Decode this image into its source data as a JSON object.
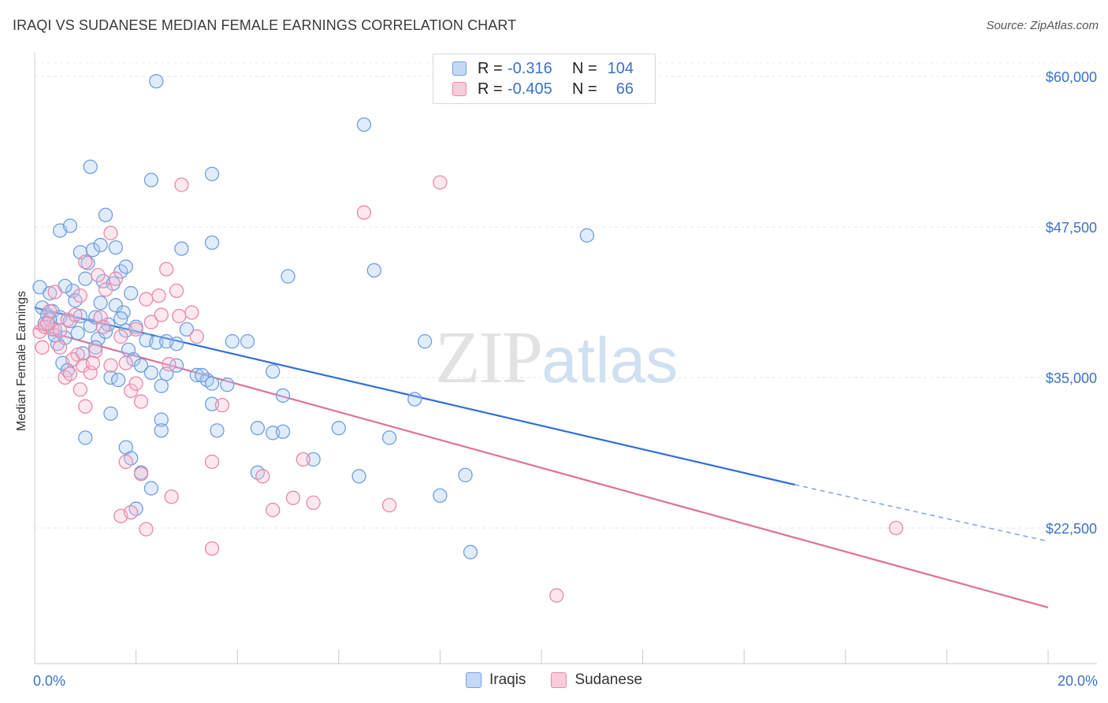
{
  "title": "IRAQI VS SUDANESE MEDIAN FEMALE EARNINGS CORRELATION CHART",
  "source": "Source: ZipAtlas.com",
  "watermark": {
    "zip": "ZIP",
    "atlas": "atlas"
  },
  "legend": {
    "rows": [
      {
        "r_label": "R =",
        "r_value": "-0.316",
        "n_label": "N =",
        "n_value": "104",
        "color": "#6f9fe0",
        "fill": "#c5d9f5"
      },
      {
        "r_label": "R =",
        "r_value": "-0.405",
        "n_label": "N =",
        "n_value": "66",
        "color": "#e888a8",
        "fill": "#f8cddb"
      }
    ]
  },
  "bottom_legend": [
    {
      "label": "Iraqis",
      "color": "#6f9fe0",
      "fill": "#c5d9f5"
    },
    {
      "label": "Sudanese",
      "color": "#e888a8",
      "fill": "#f8cddb"
    }
  ],
  "chart_data": {
    "type": "scatter",
    "xlabel": "",
    "ylabel": "Median Female Earnings",
    "x_tick_labels": [
      "0.0%",
      "20.0%"
    ],
    "y_tick_labels": [
      "$22,500",
      "$35,000",
      "$47,500",
      "$60,000"
    ],
    "y_ticks": [
      22500,
      35000,
      47500,
      60000
    ],
    "xlim": [
      0,
      20
    ],
    "ylim": [
      11000,
      61000
    ],
    "grid": true,
    "series": [
      {
        "name": "Iraqis",
        "color": "#3a72d4",
        "points": [
          [
            0.1,
            42.5
          ],
          [
            0.15,
            40.8
          ],
          [
            0.2,
            39.5
          ],
          [
            0.25,
            40.2
          ],
          [
            0.3,
            42.0
          ],
          [
            0.35,
            40.5
          ],
          [
            0.4,
            39.0
          ],
          [
            0.45,
            37.8
          ],
          [
            0.5,
            40.0
          ],
          [
            0.55,
            36.2
          ],
          [
            0.6,
            38.3
          ],
          [
            0.65,
            35.6
          ],
          [
            0.7,
            39.7
          ],
          [
            0.75,
            42.2
          ],
          [
            0.8,
            41.4
          ],
          [
            0.85,
            38.7
          ],
          [
            0.9,
            40.1
          ],
          [
            0.95,
            37.0
          ],
          [
            1.0,
            43.2
          ],
          [
            1.05,
            44.5
          ],
          [
            1.1,
            39.3
          ],
          [
            1.15,
            45.6
          ],
          [
            1.2,
            40.0
          ],
          [
            1.25,
            38.2
          ],
          [
            1.3,
            41.2
          ],
          [
            1.35,
            43.0
          ],
          [
            1.4,
            38.8
          ],
          [
            1.45,
            39.4
          ],
          [
            1.5,
            35.0
          ],
          [
            1.55,
            42.8
          ],
          [
            1.6,
            41.0
          ],
          [
            1.65,
            34.8
          ],
          [
            1.7,
            43.8
          ],
          [
            1.75,
            40.4
          ],
          [
            1.8,
            38.9
          ],
          [
            1.85,
            37.3
          ],
          [
            1.9,
            42.0
          ],
          [
            1.95,
            36.5
          ],
          [
            2.0,
            39.2
          ],
          [
            2.1,
            36.0
          ],
          [
            2.2,
            38.1
          ],
          [
            2.3,
            35.4
          ],
          [
            2.4,
            37.9
          ],
          [
            2.5,
            34.3
          ],
          [
            2.6,
            35.3
          ],
          [
            2.8,
            37.8
          ],
          [
            3.0,
            39.0
          ],
          [
            3.2,
            35.2
          ],
          [
            3.4,
            34.8
          ],
          [
            3.5,
            34.5
          ],
          [
            0.5,
            47.2
          ],
          [
            0.7,
            47.6
          ],
          [
            0.9,
            45.4
          ],
          [
            1.1,
            52.5
          ],
          [
            1.3,
            46.0
          ],
          [
            1.4,
            48.5
          ],
          [
            1.6,
            45.8
          ],
          [
            1.8,
            44.2
          ],
          [
            2.3,
            51.4
          ],
          [
            2.9,
            45.7
          ],
          [
            3.5,
            51.9
          ],
          [
            3.5,
            46.2
          ],
          [
            5.0,
            43.4
          ],
          [
            6.5,
            56.0
          ],
          [
            6.7,
            43.9
          ],
          [
            10.9,
            46.8
          ],
          [
            2.4,
            59.6
          ],
          [
            3.9,
            38.0
          ],
          [
            4.2,
            38.0
          ],
          [
            4.7,
            35.5
          ],
          [
            1.0,
            30.0
          ],
          [
            1.5,
            32.0
          ],
          [
            1.8,
            29.2
          ],
          [
            1.9,
            28.3
          ],
          [
            2.1,
            27.1
          ],
          [
            2.3,
            25.8
          ],
          [
            2.0,
            24.1
          ],
          [
            2.5,
            31.5
          ],
          [
            2.5,
            30.6
          ],
          [
            3.5,
            32.8
          ],
          [
            3.6,
            30.6
          ],
          [
            4.4,
            27.1
          ],
          [
            4.4,
            30.8
          ],
          [
            4.7,
            30.4
          ],
          [
            4.9,
            30.5
          ],
          [
            5.5,
            28.2
          ],
          [
            6.0,
            30.8
          ],
          [
            6.4,
            26.8
          ],
          [
            7.0,
            30.0
          ],
          [
            7.5,
            33.2
          ],
          [
            7.7,
            38.0
          ],
          [
            8.0,
            25.2
          ],
          [
            8.5,
            26.9
          ],
          [
            8.6,
            20.5
          ],
          [
            3.3,
            35.2
          ],
          [
            3.8,
            34.4
          ],
          [
            4.9,
            33.5
          ],
          [
            2.8,
            36.0
          ],
          [
            2.6,
            38.0
          ],
          [
            1.2,
            37.5
          ],
          [
            0.3,
            39.8
          ],
          [
            0.4,
            38.5
          ],
          [
            0.6,
            42.6
          ],
          [
            1.7,
            39.9
          ]
        ]
      },
      {
        "name": "Sudanese",
        "color": "#e0709a",
        "points": [
          [
            0.1,
            38.8
          ],
          [
            0.15,
            37.5
          ],
          [
            0.2,
            39.2
          ],
          [
            0.3,
            40.5
          ],
          [
            0.35,
            39.0
          ],
          [
            0.4,
            42.1
          ],
          [
            0.5,
            38.9
          ],
          [
            0.6,
            35.0
          ],
          [
            0.65,
            39.8
          ],
          [
            0.7,
            35.3
          ],
          [
            0.8,
            40.2
          ],
          [
            0.85,
            36.9
          ],
          [
            0.9,
            41.8
          ],
          [
            0.95,
            36.0
          ],
          [
            1.0,
            44.6
          ],
          [
            1.1,
            35.4
          ],
          [
            1.2,
            37.2
          ],
          [
            1.25,
            43.5
          ],
          [
            1.3,
            40.0
          ],
          [
            1.35,
            39.2
          ],
          [
            1.4,
            42.3
          ],
          [
            1.5,
            47.0
          ],
          [
            1.6,
            43.2
          ],
          [
            1.7,
            38.4
          ],
          [
            1.8,
            36.2
          ],
          [
            1.9,
            33.9
          ],
          [
            2.0,
            34.5
          ],
          [
            2.1,
            33.0
          ],
          [
            2.2,
            41.5
          ],
          [
            2.3,
            39.6
          ],
          [
            2.5,
            40.2
          ],
          [
            2.6,
            44.0
          ],
          [
            2.8,
            42.2
          ],
          [
            2.9,
            51.0
          ],
          [
            3.1,
            40.4
          ],
          [
            3.2,
            38.4
          ],
          [
            3.5,
            28.0
          ],
          [
            3.7,
            32.7
          ],
          [
            4.5,
            26.8
          ],
          [
            4.7,
            24.0
          ],
          [
            5.1,
            25.0
          ],
          [
            5.3,
            28.2
          ],
          [
            5.5,
            24.6
          ],
          [
            7.0,
            24.4
          ],
          [
            8.0,
            51.2
          ],
          [
            6.5,
            48.7
          ],
          [
            2.7,
            25.1
          ],
          [
            2.2,
            22.4
          ],
          [
            1.7,
            23.5
          ],
          [
            1.9,
            23.8
          ],
          [
            3.5,
            20.8
          ],
          [
            10.3,
            16.9
          ],
          [
            17.0,
            22.5
          ],
          [
            1.0,
            32.6
          ],
          [
            0.9,
            34.0
          ],
          [
            1.5,
            36.0
          ],
          [
            2.1,
            27.0
          ],
          [
            1.8,
            28.0
          ],
          [
            0.5,
            37.5
          ],
          [
            0.75,
            36.5
          ],
          [
            1.15,
            36.2
          ],
          [
            2.45,
            41.8
          ],
          [
            2.65,
            36.1
          ],
          [
            0.25,
            39.5
          ],
          [
            2.0,
            39.0
          ],
          [
            2.85,
            40.1
          ]
        ]
      }
    ],
    "trendlines": [
      {
        "series": "Iraqis",
        "x0": 0,
        "y0": 40.8,
        "x1": 15,
        "y1": 26.1,
        "dash_from_x": 15,
        "dash_to_x": 20,
        "dash_y_end": 21.4
      },
      {
        "series": "Sudanese",
        "x0": 0,
        "y0": 39.1,
        "x1": 20,
        "y1": 15.9
      }
    ]
  }
}
